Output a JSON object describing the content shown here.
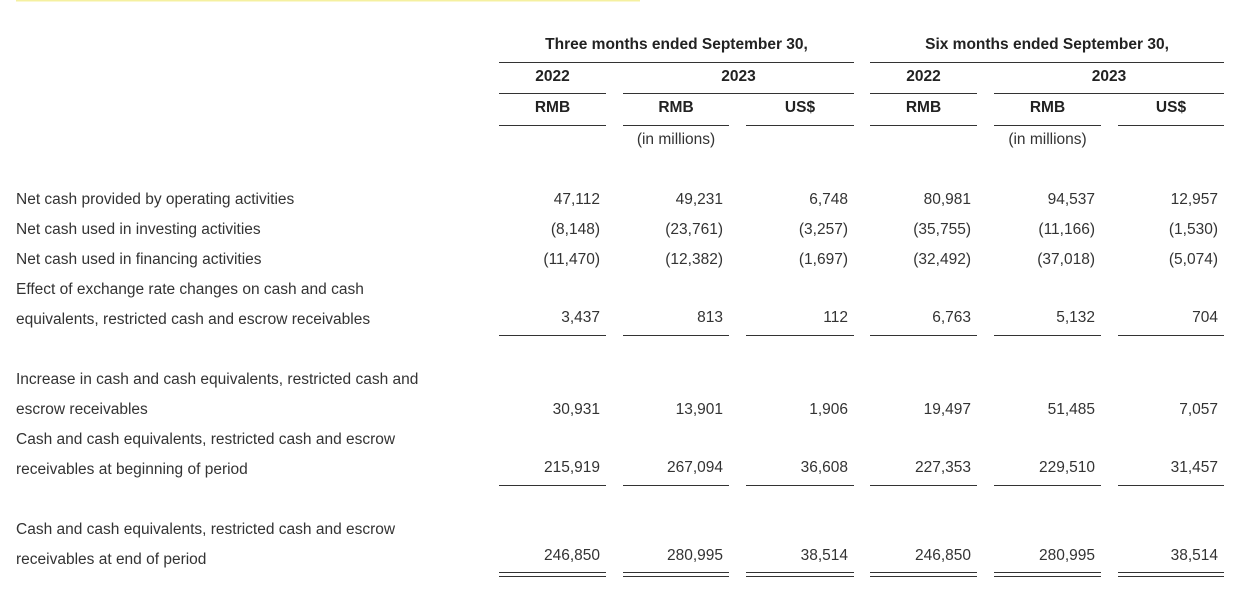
{
  "header": {
    "groups": [
      {
        "title": "Three months ended September 30,",
        "years": [
          "2022",
          "2023"
        ],
        "currencies": [
          "RMB",
          "RMB",
          "US$"
        ],
        "unit": "(in millions)"
      },
      {
        "title": "Six months ended September 30,",
        "years": [
          "2022",
          "2023"
        ],
        "currencies": [
          "RMB",
          "RMB",
          "US$"
        ],
        "unit": "(in millions)"
      }
    ]
  },
  "table": {
    "rows": [
      {
        "label": [
          "Net cash provided by operating activities"
        ],
        "values": [
          "47,112",
          "49,231",
          "6,748",
          "80,981",
          "94,537",
          "12,957"
        ]
      },
      {
        "label": [
          "Net cash used in investing activities"
        ],
        "values": [
          "(8,148)",
          "(23,761)",
          "(3,257)",
          "(35,755)",
          "(11,166)",
          "(1,530)"
        ]
      },
      {
        "label": [
          "Net cash used in financing activities"
        ],
        "values": [
          "(11,470)",
          "(12,382)",
          "(1,697)",
          "(32,492)",
          "(37,018)",
          "(5,074)"
        ]
      },
      {
        "label": [
          "Effect of exchange rate changes on cash and cash",
          "equivalents, restricted cash and escrow receivables"
        ],
        "values": [
          "3,437",
          "813",
          "112",
          "6,763",
          "5,132",
          "704"
        ]
      },
      {
        "label": [
          "Increase in cash and cash equivalents, restricted cash and",
          "escrow receivables"
        ],
        "values": [
          "30,931",
          "13,901",
          "1,906",
          "19,497",
          "51,485",
          "7,057"
        ]
      },
      {
        "label": [
          "Cash and cash equivalents, restricted cash and escrow",
          "receivables at beginning of period"
        ],
        "values": [
          "215,919",
          "267,094",
          "36,608",
          "227,353",
          "229,510",
          "31,457"
        ]
      },
      {
        "label": [
          "Cash and cash equivalents, restricted cash and escrow",
          "receivables at end of period"
        ],
        "values": [
          "246,850",
          "280,995",
          "38,514",
          "246,850",
          "280,995",
          "38,514"
        ]
      }
    ]
  }
}
